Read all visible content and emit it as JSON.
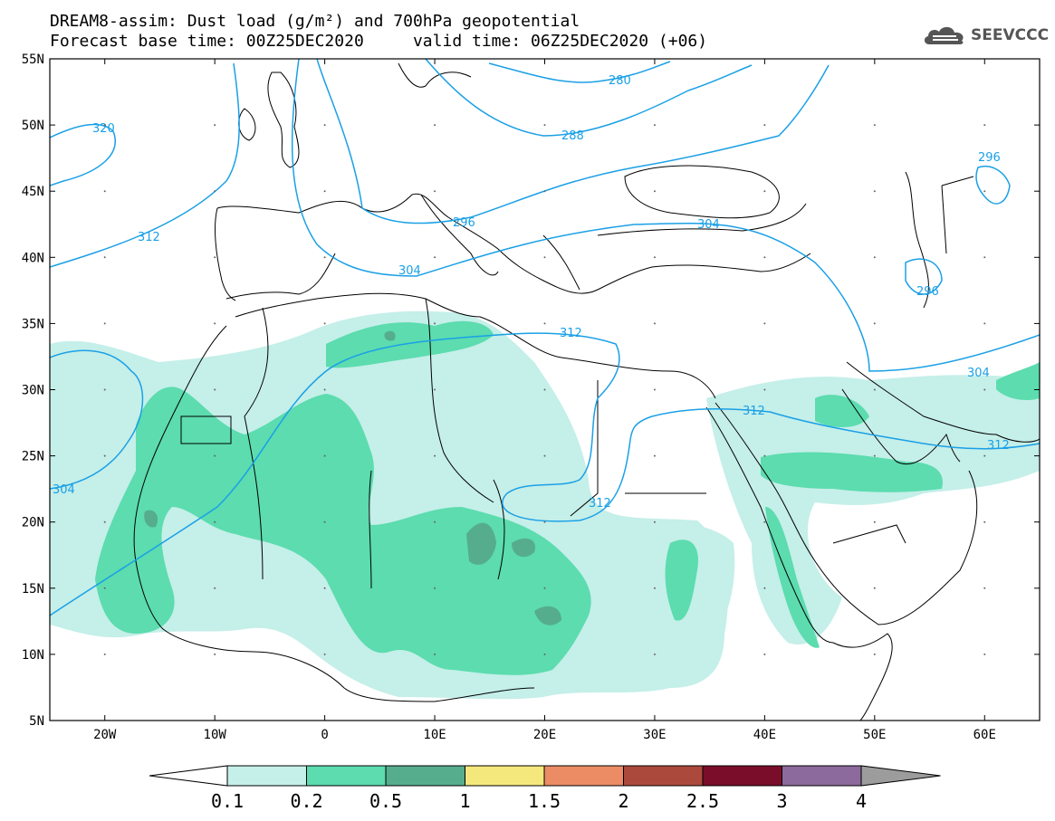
{
  "header": {
    "title_line1": "DREAM8-assim: Dust load (g/m²) and 700hPa geopotential",
    "title_line2": "Forecast base time: 00Z25DEC2020     valid time: 06Z25DEC2020 (+06)",
    "logo_text": "SEEVCCC"
  },
  "map": {
    "lat_labels": [
      "55N",
      "50N",
      "45N",
      "40N",
      "35N",
      "30N",
      "25N",
      "20N",
      "15N",
      "10N",
      "5N"
    ],
    "lon_labels": [
      "20W",
      "10W",
      "0",
      "10E",
      "20E",
      "30E",
      "40E",
      "50E",
      "60E"
    ],
    "contour_labels": [
      "280",
      "288",
      "296",
      "296",
      "304",
      "304",
      "304",
      "312",
      "312",
      "312",
      "312",
      "320",
      "296"
    ],
    "colors": {
      "dust_01": "#c5efe9",
      "dust_02": "#5cdcaf",
      "dust_05": "#56ad8d",
      "contour": "#1aa0e6"
    }
  },
  "colorbar": {
    "labels": [
      "0.1",
      "0.2",
      "0.5",
      "1",
      "1.5",
      "2",
      "2.5",
      "3",
      "4"
    ],
    "colors": [
      "#c5efe9",
      "#5cdcaf",
      "#56ad8d",
      "#f4e87c",
      "#eb8c65",
      "#ab4a3c",
      "#7a0e2a",
      "#8c6a9d",
      "#9c9c9c"
    ]
  }
}
